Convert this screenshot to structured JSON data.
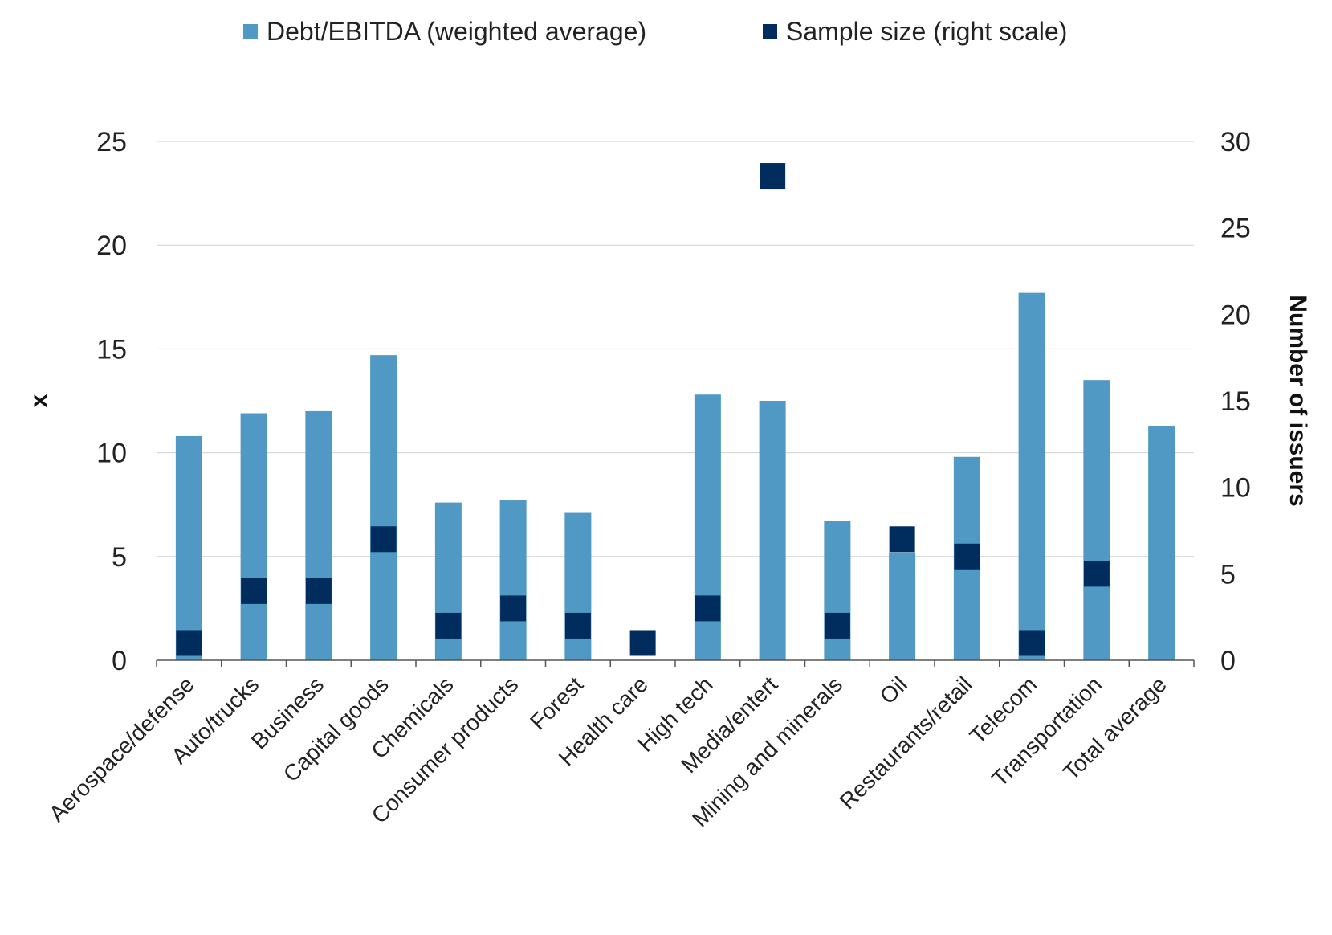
{
  "chart_data": {
    "type": "bar",
    "categories": [
      "Aerospace/defense",
      "Auto/trucks",
      "Business",
      "Capital goods",
      "Chemicals",
      "Consumer products",
      "Forest",
      "Health care",
      "High tech",
      "Media/entert",
      "Mining and minerals",
      "Oil",
      "Restaurants/retail",
      "Telecom",
      "Transportation",
      "Total average"
    ],
    "series": [
      {
        "name": "Debt/EBITDA (weighted average)",
        "axis": "left",
        "marker": "bar",
        "color": "#4F99C4",
        "values": [
          10.8,
          11.9,
          12.0,
          14.7,
          7.6,
          7.7,
          7.1,
          null,
          12.8,
          12.5,
          6.7,
          5.2,
          9.8,
          17.7,
          13.5,
          11.3
        ]
      },
      {
        "name": "Sample size (right scale)",
        "axis": "right",
        "marker": "square",
        "color": "#002D5E",
        "values": [
          1,
          4,
          4,
          7,
          2,
          3,
          2,
          1,
          3,
          28,
          2,
          7,
          6,
          1,
          5,
          null
        ]
      }
    ],
    "y_left": {
      "label": "x",
      "ylim": [
        0,
        25
      ],
      "ticks": [
        "0",
        "5",
        "10",
        "15",
        "20",
        "25"
      ]
    },
    "y_right": {
      "label": "Number of issuers",
      "ylim": [
        0,
        30
      ],
      "ticks": [
        "0",
        "5",
        "10",
        "15",
        "20",
        "25",
        "30"
      ]
    },
    "grid": true,
    "legend_position": "top"
  }
}
